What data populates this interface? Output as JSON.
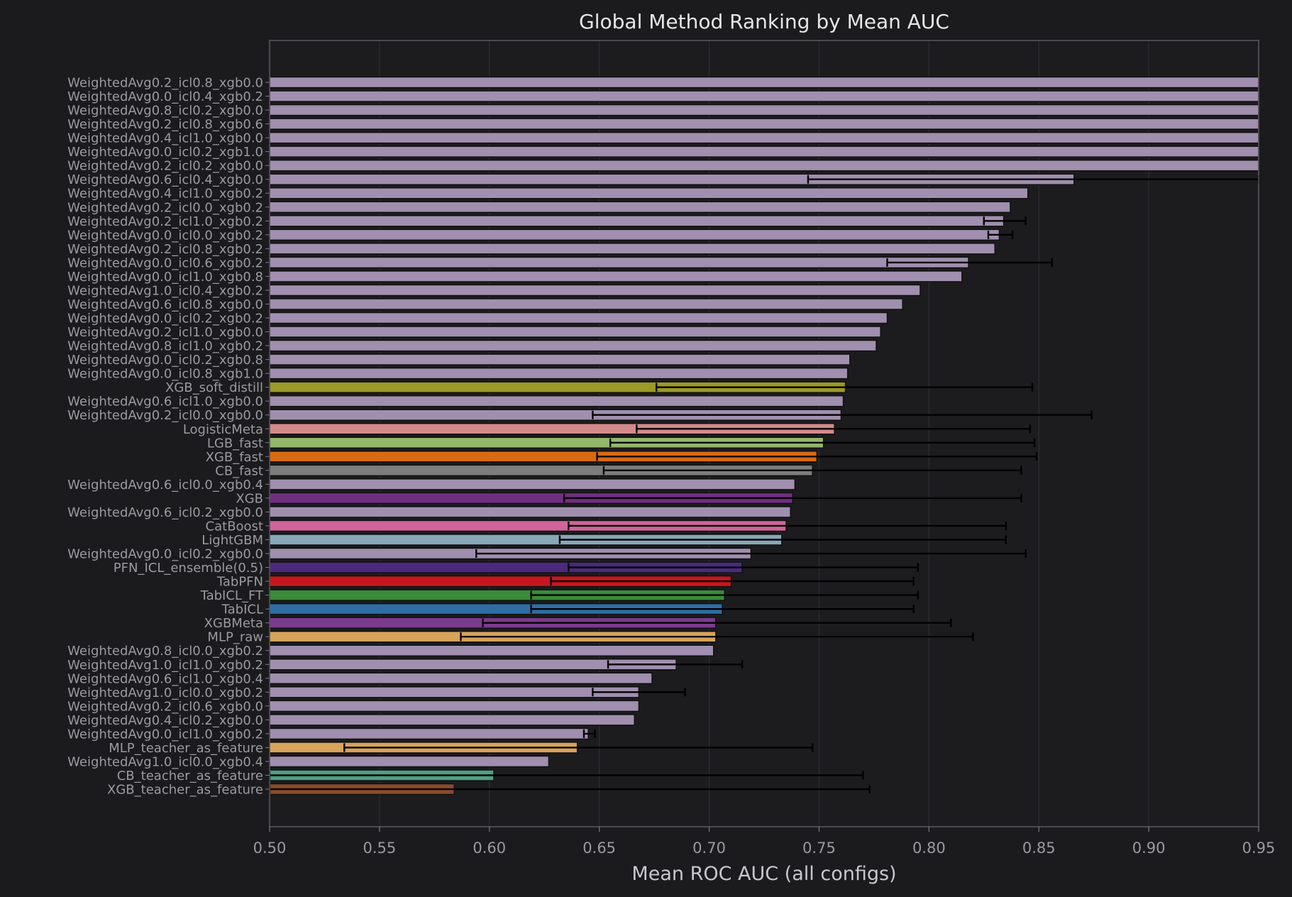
{
  "chart_data": {
    "type": "bar",
    "orientation": "horizontal",
    "title": "Global Method Ranking by Mean AUC",
    "xlabel": "Mean ROC AUC (all configs)",
    "ylabel": "",
    "xlim": [
      0.5,
      0.95
    ],
    "xticks": [
      "0.50",
      "0.55",
      "0.60",
      "0.65",
      "0.70",
      "0.75",
      "0.80",
      "0.85",
      "0.90",
      "0.95"
    ],
    "grid": "vertical",
    "colors": {
      "background": "#1b1b1e",
      "text": "#9a9aa0",
      "title": "#e6e6e6",
      "weighted_avg": "#a08fae",
      "edge": "#111111",
      "errorbar": "#000000"
    },
    "bars": [
      {
        "label": "WeightedAvg0.2_icl0.8_xgb0.0",
        "mean": 0.97,
        "color": "#a08fae"
      },
      {
        "label": "WeightedAvg0.0_icl0.4_xgb0.2",
        "mean": 0.97,
        "color": "#a08fae"
      },
      {
        "label": "WeightedAvg0.8_icl0.2_xgb0.0",
        "mean": 0.97,
        "color": "#a08fae"
      },
      {
        "label": "WeightedAvg0.2_icl0.8_xgb0.6",
        "mean": 0.97,
        "color": "#a08fae"
      },
      {
        "label": "WeightedAvg0.4_icl1.0_xgb0.0",
        "mean": 0.97,
        "color": "#a08fae"
      },
      {
        "label": "WeightedAvg0.0_icl0.2_xgb1.0",
        "mean": 0.97,
        "color": "#a08fae"
      },
      {
        "label": "WeightedAvg0.2_icl0.2_xgb0.0",
        "mean": 0.97,
        "color": "#a08fae"
      },
      {
        "label": "WeightedAvg0.6_icl0.4_xgb0.0",
        "mean": 0.866,
        "low": 0.745,
        "high": 0.95,
        "color": "#a08fae"
      },
      {
        "label": "WeightedAvg0.4_icl1.0_xgb0.2",
        "mean": 0.845,
        "color": "#a08fae"
      },
      {
        "label": "WeightedAvg0.2_icl0.0_xgb0.2",
        "mean": 0.837,
        "color": "#a08fae"
      },
      {
        "label": "WeightedAvg0.2_icl1.0_xgb0.2",
        "mean": 0.834,
        "low": 0.825,
        "high": 0.844,
        "color": "#a08fae"
      },
      {
        "label": "WeightedAvg0.0_icl0.0_xgb0.2",
        "mean": 0.832,
        "low": 0.827,
        "high": 0.838,
        "color": "#a08fae"
      },
      {
        "label": "WeightedAvg0.2_icl0.8_xgb0.2",
        "mean": 0.83,
        "color": "#a08fae"
      },
      {
        "label": "WeightedAvg0.0_icl0.6_xgb0.2",
        "mean": 0.818,
        "low": 0.781,
        "high": 0.856,
        "color": "#a08fae"
      },
      {
        "label": "WeightedAvg0.0_icl1.0_xgb0.8",
        "mean": 0.815,
        "color": "#a08fae"
      },
      {
        "label": "WeightedAvg1.0_icl0.4_xgb0.2",
        "mean": 0.796,
        "color": "#a08fae"
      },
      {
        "label": "WeightedAvg0.6_icl0.8_xgb0.0",
        "mean": 0.788,
        "color": "#a08fae"
      },
      {
        "label": "WeightedAvg0.0_icl0.2_xgb0.2",
        "mean": 0.781,
        "color": "#a08fae"
      },
      {
        "label": "WeightedAvg0.2_icl1.0_xgb0.0",
        "mean": 0.778,
        "color": "#a08fae"
      },
      {
        "label": "WeightedAvg0.8_icl1.0_xgb0.2",
        "mean": 0.776,
        "color": "#a08fae"
      },
      {
        "label": "WeightedAvg0.0_icl0.2_xgb0.8",
        "mean": 0.764,
        "color": "#a08fae"
      },
      {
        "label": "WeightedAvg0.0_icl0.8_xgb1.0",
        "mean": 0.763,
        "color": "#a08fae"
      },
      {
        "label": "XGB_soft_distill",
        "mean": 0.762,
        "low": 0.676,
        "high": 0.847,
        "color": "#9b9a27"
      },
      {
        "label": "WeightedAvg0.6_icl1.0_xgb0.0",
        "mean": 0.761,
        "color": "#a08fae"
      },
      {
        "label": "WeightedAvg0.2_icl0.0_xgb0.0",
        "mean": 0.76,
        "low": 0.647,
        "high": 0.874,
        "color": "#a08fae"
      },
      {
        "label": "LogisticMeta",
        "mean": 0.757,
        "low": 0.667,
        "high": 0.846,
        "color": "#d48a8a"
      },
      {
        "label": "LGB_fast",
        "mean": 0.752,
        "low": 0.655,
        "high": 0.848,
        "color": "#93b76d"
      },
      {
        "label": "XGB_fast",
        "mean": 0.749,
        "low": 0.649,
        "high": 0.849,
        "color": "#d96a14"
      },
      {
        "label": "CB_fast",
        "mean": 0.747,
        "low": 0.652,
        "high": 0.842,
        "color": "#7d7d7d"
      },
      {
        "label": "WeightedAvg0.6_icl0.0_xgb0.4",
        "mean": 0.739,
        "color": "#a08fae"
      },
      {
        "label": "XGB",
        "mean": 0.738,
        "low": 0.634,
        "high": 0.842,
        "color": "#6f2f80"
      },
      {
        "label": "WeightedAvg0.6_icl0.2_xgb0.0",
        "mean": 0.737,
        "color": "#a08fae"
      },
      {
        "label": "CatBoost",
        "mean": 0.735,
        "low": 0.636,
        "high": 0.835,
        "color": "#d2649b"
      },
      {
        "label": "LightGBM",
        "mean": 0.733,
        "low": 0.632,
        "high": 0.835,
        "color": "#86a8b8"
      },
      {
        "label": "WeightedAvg0.0_icl0.2_xgb0.0",
        "mean": 0.719,
        "low": 0.594,
        "high": 0.844,
        "color": "#a08fae"
      },
      {
        "label": "PFN_ICL_ensemble(0.5)",
        "mean": 0.715,
        "low": 0.636,
        "high": 0.795,
        "color": "#4b2a7c"
      },
      {
        "label": "TabPFN",
        "mean": 0.71,
        "low": 0.628,
        "high": 0.793,
        "color": "#c7171e"
      },
      {
        "label": "TabICL_FT",
        "mean": 0.707,
        "low": 0.619,
        "high": 0.795,
        "color": "#3a8b3a"
      },
      {
        "label": "TabICL",
        "mean": 0.706,
        "low": 0.619,
        "high": 0.793,
        "color": "#2e6da4"
      },
      {
        "label": "XGBMeta",
        "mean": 0.703,
        "low": 0.597,
        "high": 0.81,
        "color": "#7b3a8c"
      },
      {
        "label": "MLP_raw",
        "mean": 0.703,
        "low": 0.587,
        "high": 0.82,
        "color": "#d9a35b"
      },
      {
        "label": "WeightedAvg0.8_icl0.0_xgb0.2",
        "mean": 0.702,
        "color": "#a08fae"
      },
      {
        "label": "WeightedAvg1.0_icl1.0_xgb0.2",
        "mean": 0.685,
        "low": 0.654,
        "high": 0.715,
        "color": "#a08fae"
      },
      {
        "label": "WeightedAvg0.6_icl1.0_xgb0.4",
        "mean": 0.674,
        "color": "#a08fae"
      },
      {
        "label": "WeightedAvg1.0_icl0.0_xgb0.2",
        "mean": 0.668,
        "low": 0.647,
        "high": 0.689,
        "color": "#a08fae"
      },
      {
        "label": "WeightedAvg0.2_icl0.6_xgb0.0",
        "mean": 0.668,
        "color": "#a08fae"
      },
      {
        "label": "WeightedAvg0.4_icl0.2_xgb0.0",
        "mean": 0.666,
        "color": "#a08fae"
      },
      {
        "label": "WeightedAvg0.0_icl1.0_xgb0.2",
        "mean": 0.645,
        "low": 0.643,
        "high": 0.648,
        "color": "#a08fae"
      },
      {
        "label": "MLP_teacher_as_feature",
        "mean": 0.64,
        "low": 0.534,
        "high": 0.747,
        "color": "#d9a35b"
      },
      {
        "label": "WeightedAvg1.0_icl0.0_xgb0.4",
        "mean": 0.627,
        "color": "#a08fae"
      },
      {
        "label": "CB_teacher_as_feature",
        "mean": 0.602,
        "low": 0.5,
        "high": 0.77,
        "color": "#4fa084"
      },
      {
        "label": "XGB_teacher_as_feature",
        "mean": 0.584,
        "low": 0.5,
        "high": 0.773,
        "color": "#8c4a2a"
      }
    ]
  }
}
